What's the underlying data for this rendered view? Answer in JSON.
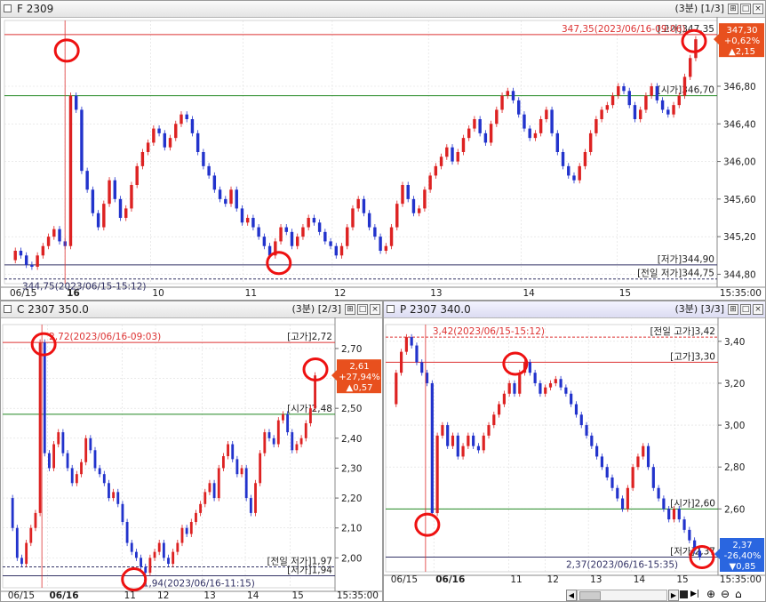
{
  "colors": {
    "up": "#dd2222",
    "down": "#2233cc",
    "high_line": "#dd3333",
    "open_line": "#228822",
    "low_line": "#333366",
    "marker": "#ee1111",
    "up_badge": "#e8501e",
    "down_badge": "#2a66e0"
  },
  "panels": [
    {
      "id": "f2309",
      "title": "F 2309",
      "interval": "(3분)",
      "index": "[1/3]",
      "ymin": 344.7,
      "ymax": 347.5,
      "yticks": [
        "344,80",
        "345,20",
        "345,60",
        "346,00",
        "346,40",
        "346,80"
      ],
      "ytick_values": [
        344.8,
        345.2,
        345.6,
        346.0,
        346.4,
        346.8
      ],
      "xlabels": [
        "06/15",
        "16",
        "10",
        "11",
        "12",
        "13",
        "14",
        "15",
        "15:35:00"
      ],
      "lines": [
        {
          "kind": "high",
          "value": 347.35,
          "label": "347,35(2023/06/16-09:06)",
          "right_label": "[고가]347,35"
        },
        {
          "kind": "open",
          "value": 346.7,
          "right_label": "[시가]346,70"
        },
        {
          "kind": "low",
          "value": 344.9,
          "right_label": "[저가]344,90"
        },
        {
          "kind": "prevlow",
          "value": 344.75,
          "label": "344,75(2023/06/15-15:12)",
          "right_label": "[전일 저가]344,75"
        }
      ],
      "badge": {
        "price": "347,30",
        "pct": "+0,62%",
        "chg": "▲2,15",
        "dir": "up"
      }
    },
    {
      "id": "c2307",
      "title": "C 2307 350.0",
      "interval": "(3분)",
      "index": "[2/3]",
      "ymin": 1.9,
      "ymax": 2.78,
      "yticks": [
        "2,00",
        "2,10",
        "2,20",
        "2,30",
        "2,40",
        "2,50",
        "2,60",
        "2,70"
      ],
      "ytick_values": [
        2.0,
        2.1,
        2.2,
        2.3,
        2.4,
        2.5,
        2.6,
        2.7
      ],
      "xlabels": [
        "06/15",
        "06/16",
        "11",
        "12",
        "13",
        "14",
        "15",
        "15:35:00"
      ],
      "lines": [
        {
          "kind": "high",
          "value": 2.72,
          "label": "2,72(2023/06/16-09:03)",
          "right_label": "[고가]2,72"
        },
        {
          "kind": "open",
          "value": 2.48,
          "right_label": "[시가]2,48"
        },
        {
          "kind": "prevlow",
          "value": 1.97,
          "right_label": "[전일 저가]1,97"
        },
        {
          "kind": "low",
          "value": 1.94,
          "label": "1,94(2023/06/16-11:15)",
          "right_label": "[저가]1,94"
        }
      ],
      "badge": {
        "price": "2,61",
        "pct": "+27,94%",
        "chg": "▲0,57",
        "dir": "up"
      }
    },
    {
      "id": "p2307",
      "title": "P 2307 340.0",
      "interval": "(3분)",
      "index": "[3/3]",
      "ymin": 2.3,
      "ymax": 3.48,
      "yticks": [
        "2,60",
        "2,80",
        "3,00",
        "3,20",
        "3,40"
      ],
      "ytick_values": [
        2.6,
        2.8,
        3.0,
        3.2,
        3.4
      ],
      "xlabels": [
        "06/15",
        "06/16",
        "11",
        "12",
        "13",
        "14",
        "15",
        "15:35:00"
      ],
      "lines": [
        {
          "kind": "prevhigh",
          "value": 3.42,
          "label": "3,42(2023/06/15-15:12)",
          "right_label": "[전일 고가]3,42"
        },
        {
          "kind": "high",
          "value": 3.3,
          "right_label": "[고가]3,30"
        },
        {
          "kind": "open",
          "value": 2.6,
          "right_label": "[시가]2,60"
        },
        {
          "kind": "low",
          "value": 2.37,
          "label": "2,37(2023/06/16-15:35)",
          "right_label": "[저가]2,37"
        }
      ],
      "badge": {
        "price": "2,37",
        "pct": "-26,40%",
        "chg": "▼0,85",
        "dir": "down"
      }
    }
  ],
  "toolbar": {
    "zoom_in": "⊕",
    "zoom_out": "⊖",
    "home": "⌂"
  },
  "series": {
    "f2309": [
      344.95,
      345.05,
      345.0,
      344.9,
      344.88,
      345.0,
      345.1,
      345.2,
      345.28,
      345.15,
      345.1,
      346.7,
      346.55,
      345.9,
      345.7,
      345.45,
      345.3,
      345.55,
      345.8,
      345.6,
      345.4,
      345.5,
      345.75,
      345.95,
      346.1,
      346.2,
      346.35,
      346.3,
      346.15,
      346.25,
      346.4,
      346.5,
      346.45,
      346.3,
      346.1,
      345.95,
      345.85,
      345.7,
      345.6,
      345.55,
      345.7,
      345.5,
      345.35,
      345.4,
      345.3,
      345.2,
      345.1,
      345.0,
      345.15,
      345.3,
      345.25,
      345.1,
      345.2,
      345.3,
      345.4,
      345.35,
      345.25,
      345.15,
      345.1,
      345.0,
      345.1,
      345.3,
      345.5,
      345.6,
      345.45,
      345.3,
      345.2,
      345.05,
      345.1,
      345.3,
      345.55,
      345.75,
      345.6,
      345.45,
      345.5,
      345.7,
      345.85,
      345.95,
      346.05,
      346.15,
      346.0,
      346.1,
      346.25,
      346.35,
      346.45,
      346.3,
      346.2,
      346.4,
      346.55,
      346.7,
      346.75,
      346.65,
      346.5,
      346.35,
      346.25,
      346.3,
      346.45,
      346.55,
      346.3,
      346.1,
      345.95,
      345.85,
      345.8,
      345.95,
      346.1,
      346.3,
      346.45,
      346.55,
      346.6,
      346.7,
      346.8,
      346.75,
      346.6,
      346.45,
      346.55,
      346.7,
      346.8,
      346.65,
      346.55,
      346.5,
      346.6,
      346.7,
      346.9,
      347.1,
      347.3
    ],
    "c2307": [
      2.2,
      2.1,
      2.0,
      1.98,
      2.05,
      2.1,
      2.15,
      2.72,
      2.35,
      2.3,
      2.38,
      2.42,
      2.35,
      2.3,
      2.25,
      2.28,
      2.32,
      2.4,
      2.36,
      2.3,
      2.28,
      2.25,
      2.2,
      2.22,
      2.18,
      2.12,
      2.05,
      2.02,
      2.0,
      1.97,
      1.95,
      2.0,
      2.02,
      2.05,
      2.0,
      1.98,
      2.02,
      2.05,
      2.1,
      2.08,
      2.12,
      2.15,
      2.18,
      2.22,
      2.25,
      2.2,
      2.3,
      2.34,
      2.38,
      2.33,
      2.28,
      2.3,
      2.2,
      2.15,
      2.25,
      2.35,
      2.42,
      2.4,
      2.38,
      2.46,
      2.48,
      2.42,
      2.36,
      2.38,
      2.4,
      2.45,
      2.5,
      2.61
    ],
    "p2307": [
      3.1,
      3.25,
      3.35,
      3.42,
      3.38,
      3.3,
      3.25,
      3.2,
      2.58,
      2.95,
      3.0,
      2.9,
      2.95,
      2.85,
      2.9,
      2.95,
      2.9,
      2.88,
      2.95,
      3.0,
      3.05,
      3.1,
      3.15,
      3.2,
      3.15,
      3.25,
      3.3,
      3.25,
      3.2,
      3.15,
      3.18,
      3.2,
      3.22,
      3.18,
      3.15,
      3.1,
      3.05,
      3.0,
      2.95,
      2.9,
      2.85,
      2.8,
      2.75,
      2.7,
      2.65,
      2.6,
      2.7,
      2.8,
      2.85,
      2.9,
      2.8,
      2.7,
      2.65,
      2.6,
      2.55,
      2.6,
      2.55,
      2.5,
      2.45,
      2.4,
      2.37
    ]
  }
}
